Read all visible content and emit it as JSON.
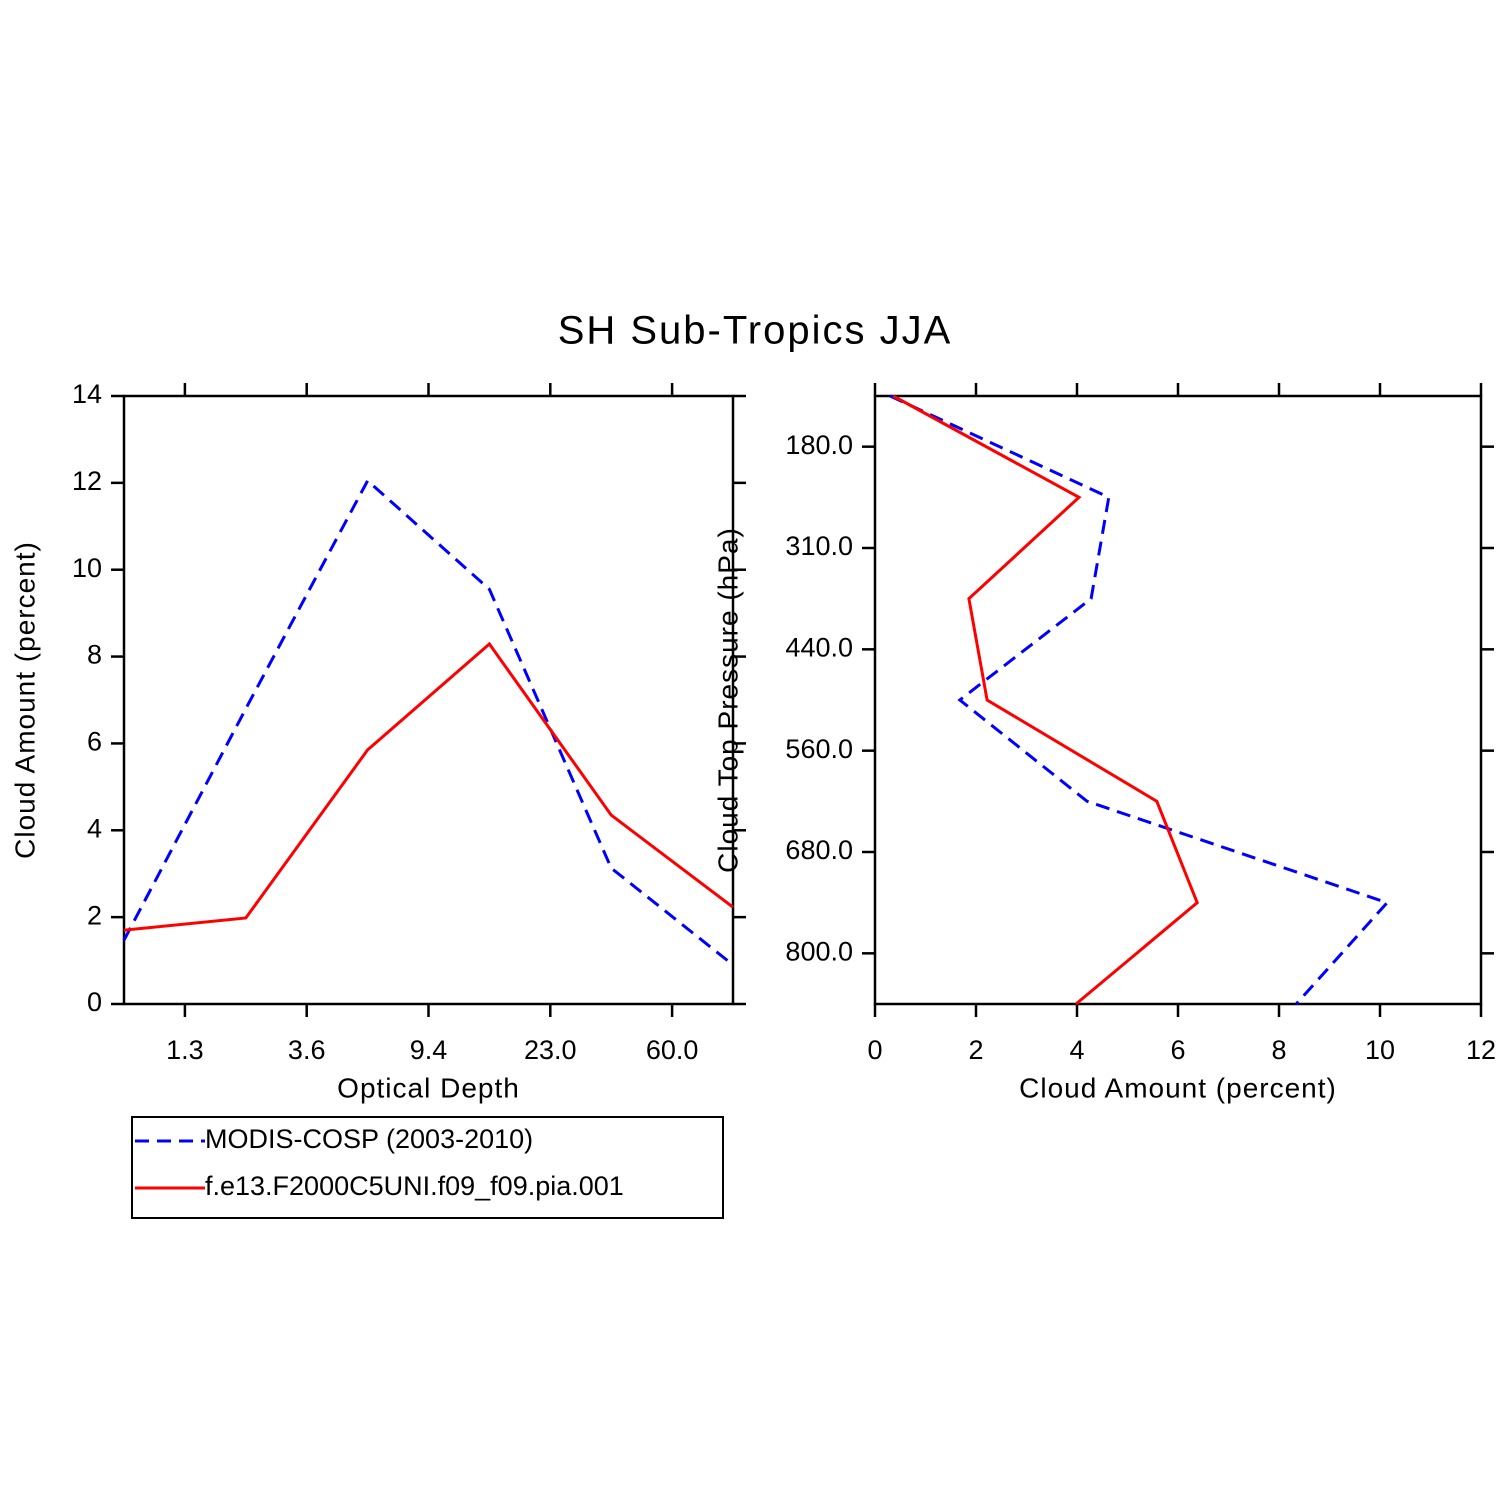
{
  "chart_data": [
    {
      "type": "line",
      "title": "SH Sub-Tropics JJA",
      "x_label": "Optical Depth",
      "y_label": "Cloud Amount (percent)",
      "x": [
        0,
        1,
        2,
        3,
        4,
        5
      ],
      "xlim": [
        0,
        5
      ],
      "xticks": [
        {
          "value": 0.5,
          "label": "1.3"
        },
        {
          "value": 1.5,
          "label": "3.6"
        },
        {
          "value": 2.5,
          "label": "9.4"
        },
        {
          "value": 3.5,
          "label": "23.0"
        },
        {
          "value": 4.5,
          "label": "60.0"
        }
      ],
      "ylim": [
        0,
        14
      ],
      "yticks": [
        0,
        2,
        4,
        6,
        8,
        10,
        12,
        14
      ],
      "legend": "below",
      "series": [
        {
          "name": "MODIS-COSP (2003-2010)",
          "color": "#0000ff",
          "line_style": "dashed",
          "values": [
            1.47,
            6.8,
            12.05,
            9.55,
            3.13,
            0.9
          ]
        },
        {
          "name": "f.e13.F2000C5UNI.f09_f09.pia.001",
          "color": "#ff0000",
          "line_style": "solid",
          "values": [
            1.7,
            1.98,
            5.85,
            8.29,
            4.35,
            2.23
          ]
        }
      ]
    },
    {
      "type": "line",
      "orientation": "horizontal",
      "x_label": "Cloud Amount (percent)",
      "y_label": "Cloud Top Pressure (hPa)",
      "y": [
        0,
        1,
        2,
        3,
        4,
        5,
        6
      ],
      "ylim": [
        6,
        0
      ],
      "yticks": [
        {
          "value": 0.5,
          "label": "180.0"
        },
        {
          "value": 1.5,
          "label": "310.0"
        },
        {
          "value": 2.5,
          "label": "440.0"
        },
        {
          "value": 3.5,
          "label": "560.0"
        },
        {
          "value": 4.5,
          "label": "680.0"
        },
        {
          "value": 5.5,
          "label": "800.0"
        }
      ],
      "xlim": [
        0,
        12
      ],
      "xticks": [
        0,
        2,
        4,
        6,
        8,
        10,
        12
      ],
      "series": [
        {
          "color": "#0000ff",
          "line_style": "dashed",
          "values": [
            0.3,
            4.63,
            4.28,
            1.68,
            4.2,
            10.14,
            8.34
          ]
        },
        {
          "color": "#ff0000",
          "line_style": "solid",
          "values": [
            0.36,
            4.04,
            1.86,
            2.22,
            5.58,
            6.38,
            3.98
          ]
        }
      ]
    }
  ]
}
